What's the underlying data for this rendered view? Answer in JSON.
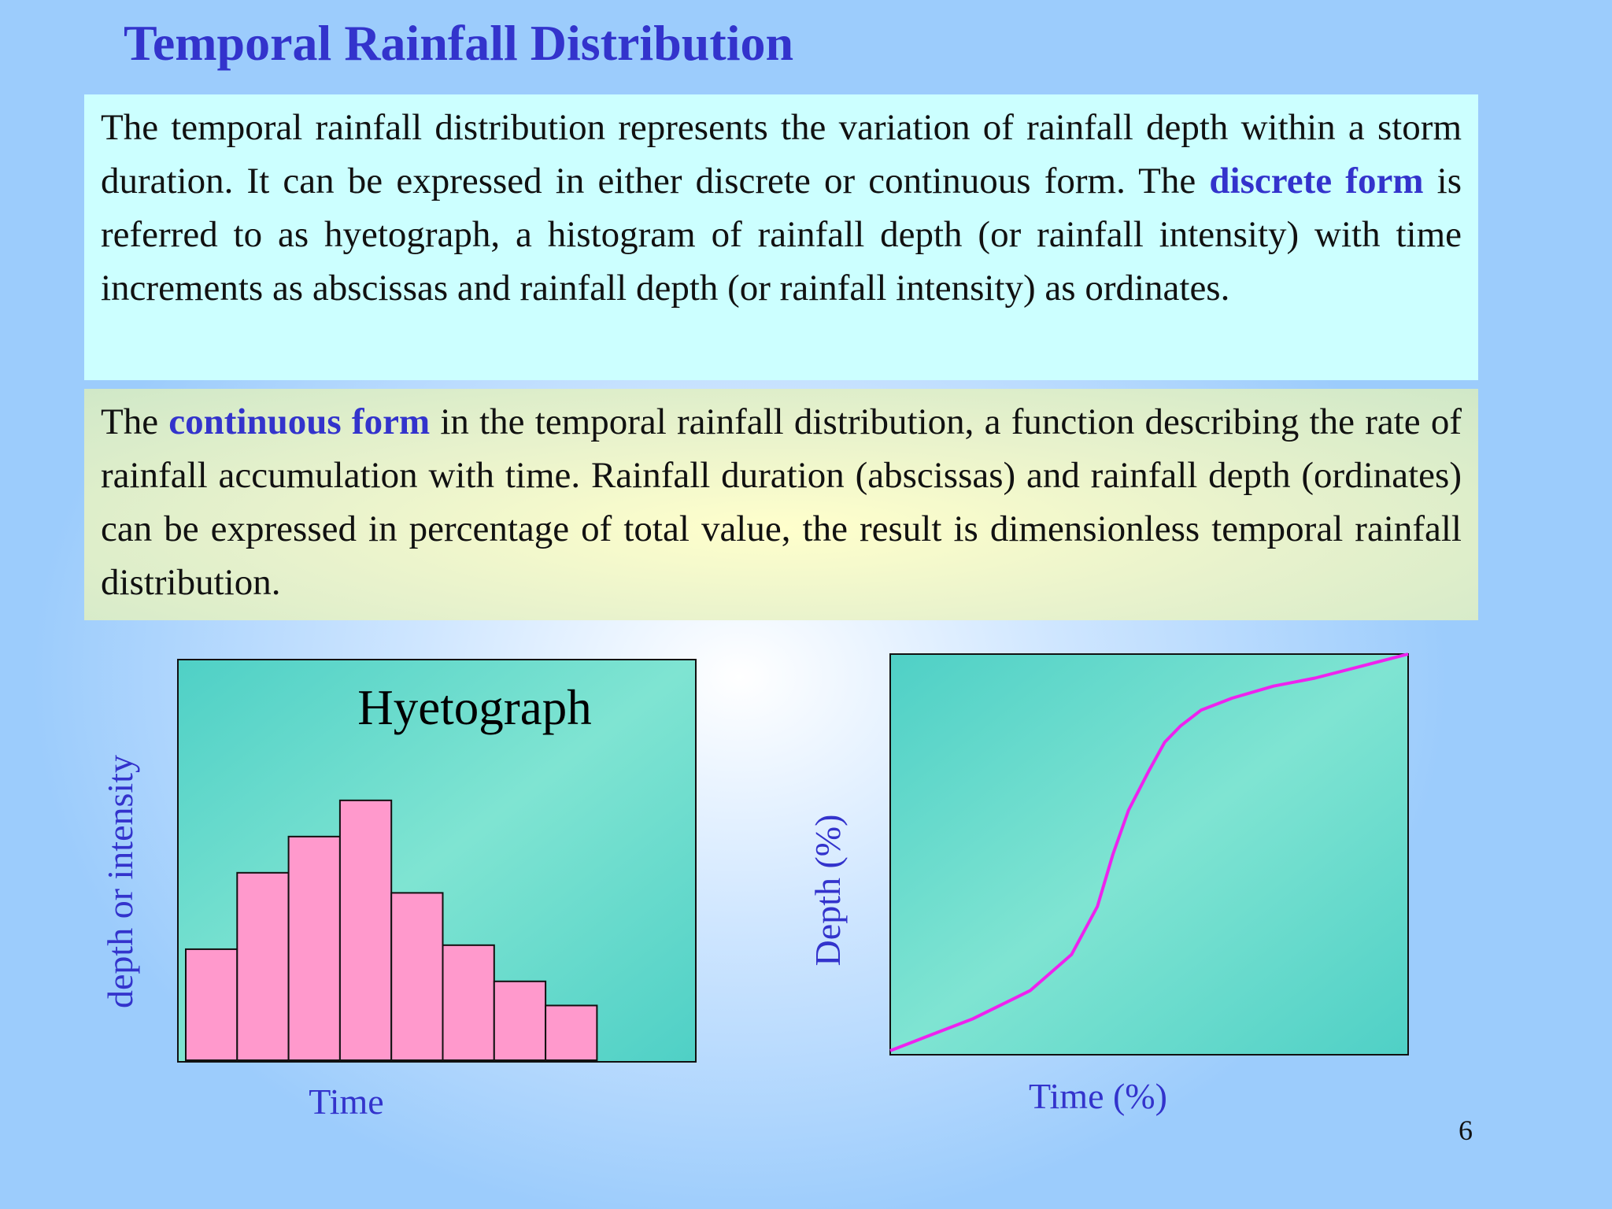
{
  "title": "Temporal Rainfall Distribution",
  "box1": [
    "The temporal rainfall distribution represents the variation of rainfall depth within a storm duration. It can be expressed in either discrete or continuous form. The ",
    "discrete form",
    " is referred to as hyetograph, a histogram of rainfall depth (or rainfall intensity) with time increments as abscissas and rainfall depth (or rainfall intensity) as ordinates."
  ],
  "box2": [
    "The ",
    "continuous form",
    " in the temporal rainfall distribution, a function describing the rate of rainfall accumulation with time. Rainfall duration (abscissas) and rainfall depth (ordinates) can be expressed in percentage of total value, the result is dimensionless temporal rainfall distribution."
  ],
  "page_number": "6",
  "chart_data": [
    {
      "type": "bar",
      "title": "Hyetograph",
      "x_label": "Time",
      "y_label": "depth or intensity",
      "categories": [
        null,
        null,
        null,
        null,
        null,
        null,
        null,
        null
      ],
      "values": [
        28,
        47,
        56,
        65,
        42,
        29,
        20,
        14
      ],
      "color": "#ff99cc",
      "ylim": [
        0,
        100
      ]
    },
    {
      "type": "line",
      "x_label": "Time (%)",
      "y_label": "Depth (%)",
      "x": [
        0,
        8,
        16,
        27,
        35,
        40,
        43,
        46,
        50,
        53,
        56,
        60,
        66,
        74,
        82,
        91,
        100
      ],
      "values": [
        1,
        5,
        9,
        16,
        25,
        37,
        50,
        61,
        71,
        78,
        82,
        86,
        89,
        92,
        94,
        97,
        100
      ],
      "color": "#ee22ee",
      "xlim": [
        0,
        100
      ],
      "ylim": [
        0,
        100
      ]
    }
  ]
}
